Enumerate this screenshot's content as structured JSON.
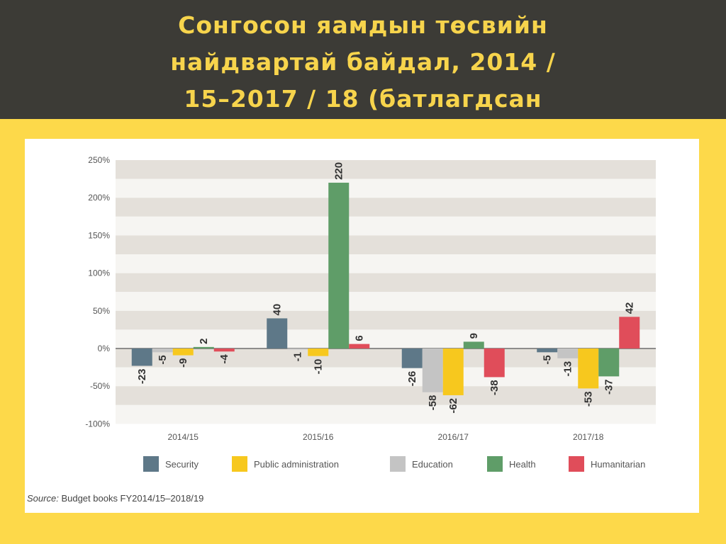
{
  "slide": {
    "title_line1": "Сонгосон яамдын төсвийн",
    "title_line2": "найдвартай байдал, 2014 /",
    "title_line3": "15–2017 / 18 (батлагдсан"
  },
  "colors": {
    "header_bg": "#3c3b36",
    "title_text": "#f7d44c",
    "accent_yellow": "#fdd94a",
    "band_dark": "#e4e0da",
    "band_light": "#f6f5f2"
  },
  "chart_data": {
    "type": "bar",
    "categories": [
      "2014/15",
      "2015/16",
      "2016/17",
      "2017/18"
    ],
    "series": [
      {
        "name": "Security",
        "color": "#5e7888",
        "values": [
          -23,
          40,
          -26,
          -5
        ]
      },
      {
        "name": "Public administration",
        "color": "#f7c81e",
        "values": [
          -9,
          -10,
          -62,
          -53
        ]
      },
      {
        "name": "Education",
        "color": "#c4c4c4",
        "values": [
          -5,
          -1,
          -58,
          -13
        ]
      },
      {
        "name": "Health",
        "color": "#5f9d68",
        "values": [
          2,
          220,
          9,
          -37
        ]
      },
      {
        "name": "Humanitarian",
        "color": "#e04d5a",
        "values": [
          -4,
          6,
          -38,
          42
        ]
      }
    ],
    "bar_order": [
      "Security",
      "Education",
      "Public administration",
      "Health",
      "Humanitarian"
    ],
    "yticks": [
      "250%",
      "200%",
      "150%",
      "100%",
      "50%",
      "0%",
      "-50%",
      "-100%"
    ],
    "ylim": [
      -100,
      250
    ],
    "legend_position": "bottom",
    "source_label": "Source:",
    "source_text": "Budget books FY2014/15–2018/19"
  }
}
